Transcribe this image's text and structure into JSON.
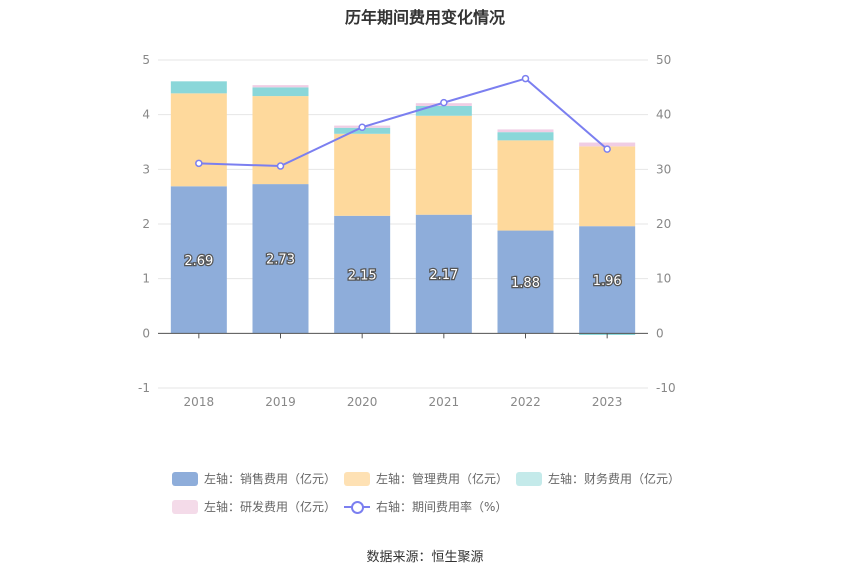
{
  "title": "历年期间费用变化情况",
  "source_label": "数据来源：恒生聚源",
  "chart_data": {
    "type": "bar",
    "stacked": true,
    "categories": [
      "2018",
      "2019",
      "2020",
      "2021",
      "2022",
      "2023"
    ],
    "left_axis": {
      "ylim": [
        -1,
        5
      ],
      "ticks": [
        "-1",
        "0",
        "1",
        "2",
        "3",
        "4",
        "5"
      ]
    },
    "right_axis": {
      "ylim": [
        -10,
        50
      ],
      "ticks": [
        "-10",
        "0",
        "10",
        "20",
        "30",
        "40",
        "50"
      ]
    },
    "series": [
      {
        "name": "左轴：销售费用（亿元）",
        "axis": "left",
        "kind": "bar",
        "color": "#8eadda",
        "values": [
          2.69,
          2.73,
          2.15,
          2.17,
          1.88,
          1.96
        ],
        "labels": [
          "2.69",
          "2.73",
          "2.15",
          "2.17",
          "1.88",
          "1.96"
        ]
      },
      {
        "name": "左轴：管理费用（亿元）",
        "axis": "left",
        "kind": "bar",
        "color": "#fed99c",
        "values": [
          1.7,
          1.61,
          1.5,
          1.81,
          1.65,
          1.46
        ]
      },
      {
        "name": "左轴：财务费用（亿元）",
        "axis": "left",
        "kind": "bar",
        "color": "#8ad7d9",
        "values": [
          0.22,
          0.16,
          0.11,
          0.18,
          0.15,
          -0.03
        ]
      },
      {
        "name": "左轴：研发费用（亿元）",
        "axis": "left",
        "kind": "bar",
        "color": "#f0cde4",
        "values": [
          0.0,
          0.04,
          0.04,
          0.05,
          0.05,
          0.07
        ]
      },
      {
        "name": "右轴：期间费用率（%）",
        "axis": "right",
        "kind": "line",
        "color": "#7b7ff0",
        "values": [
          31.1,
          30.6,
          37.7,
          42.2,
          46.6,
          33.7
        ]
      }
    ],
    "legend_swatch_colors": [
      "#8eadda",
      "#fee1b4",
      "#c4eaea",
      "#f4dbe9",
      "#7b7ff0"
    ],
    "grid": true,
    "legend_position": "bottom"
  }
}
